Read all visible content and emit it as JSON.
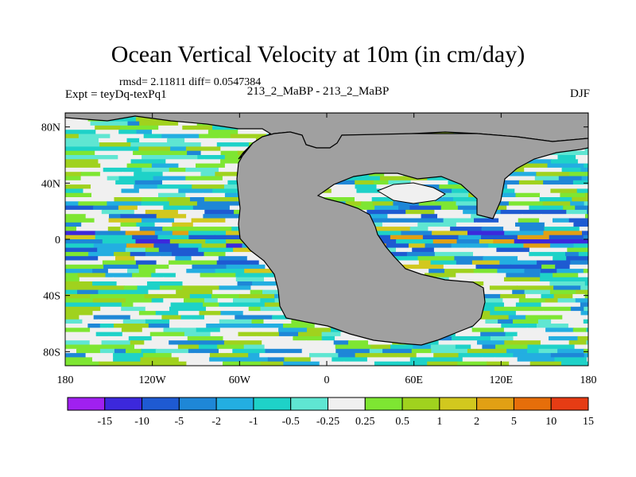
{
  "title": "Ocean Vertical Velocity at 10m (in cm/day)",
  "stats": "rmsd= 2.11811 diff= 0.0547384",
  "experiment": "Expt = teyDq-texPq1",
  "runs": "213_2_MaBP - 213_2_MaBP",
  "season": "DJF",
  "lat_ticks": [
    "80N",
    "40N",
    "0",
    "40S",
    "80S"
  ],
  "lon_ticks": [
    "180",
    "120W",
    "60W",
    "0",
    "60E",
    "120E",
    "180"
  ],
  "colorbar": {
    "levels": [
      "-15",
      "-10",
      "-5",
      "-2",
      "-1",
      "-0.5",
      "-0.25",
      "0.25",
      "0.5",
      "1",
      "2",
      "5",
      "10",
      "15"
    ],
    "colors": [
      "#a020f0",
      "#3c28dc",
      "#1e5ad2",
      "#1e87d7",
      "#23aee1",
      "#1ed2c8",
      "#5fe6d2",
      "#f0f0f0",
      "#7ee632",
      "#a0d21e",
      "#d2c81e",
      "#e1a014",
      "#e66e0a",
      "#e63c14"
    ]
  },
  "colors": {
    "land": "#a0a0a0",
    "coast": "#000000"
  }
}
